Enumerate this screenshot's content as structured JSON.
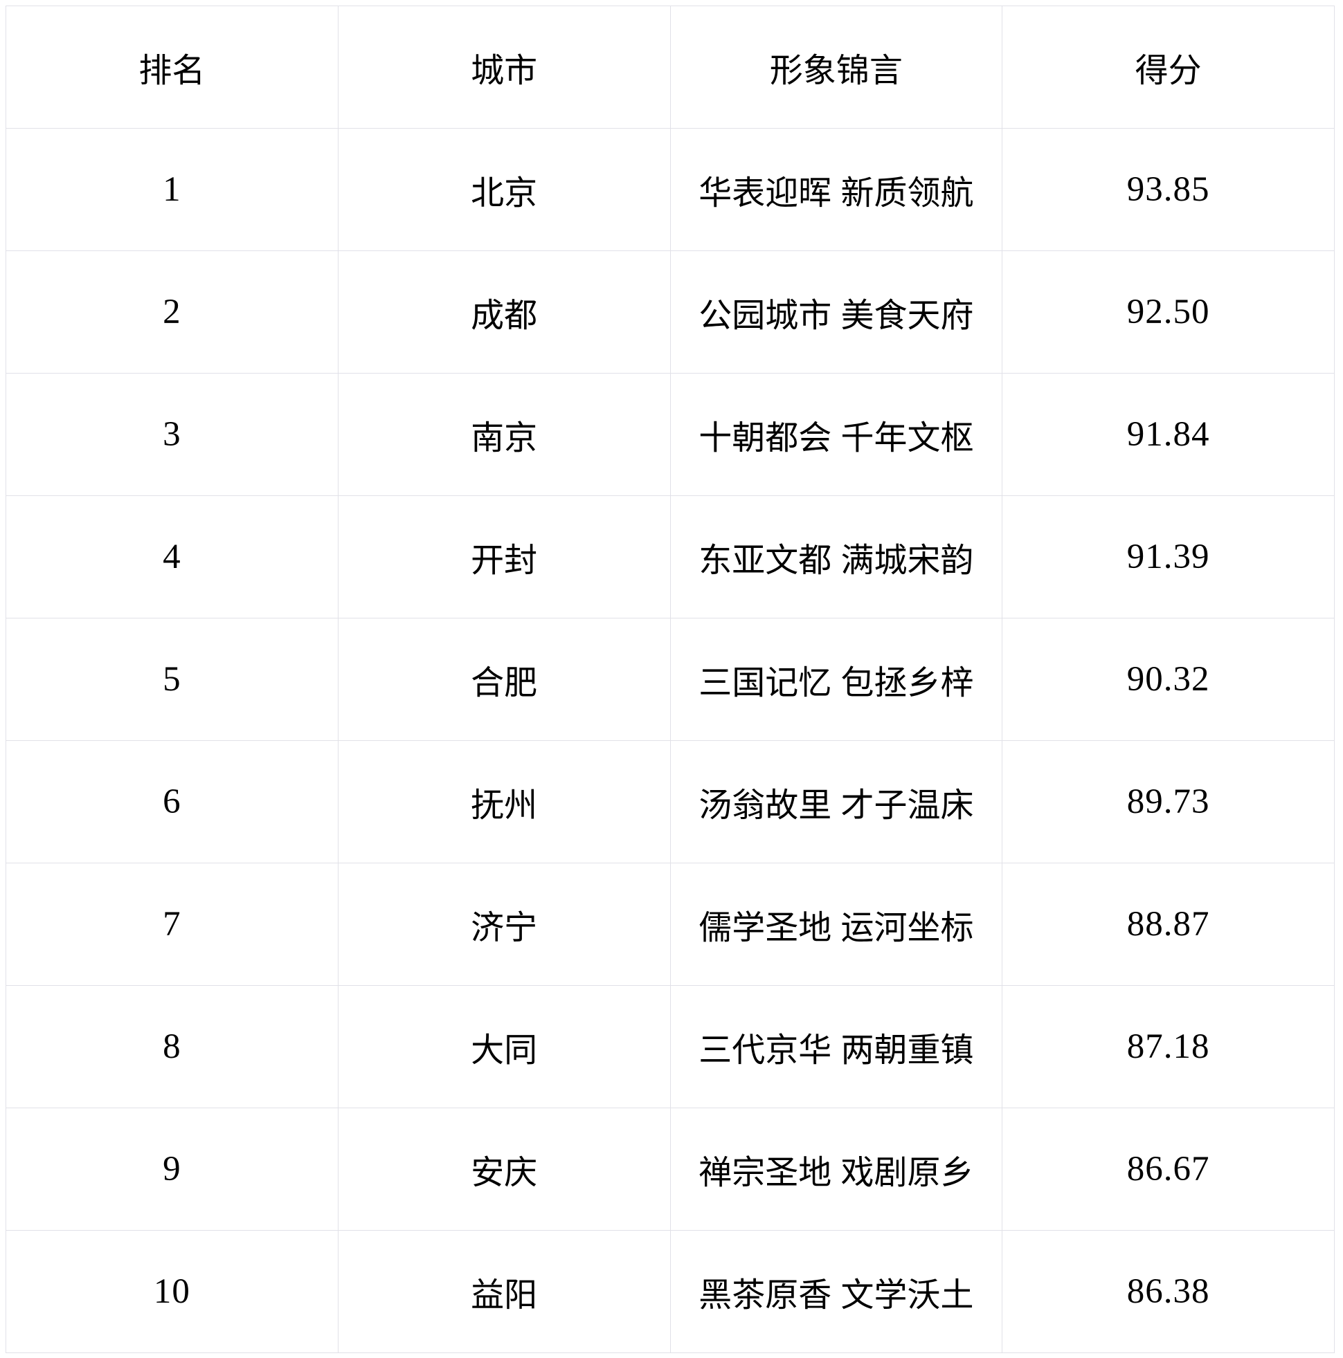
{
  "chart_data": {
    "type": "table",
    "title": "",
    "columns": [
      "排名",
      "城市",
      "形象锦言",
      "得分"
    ],
    "rows": [
      [
        "1",
        "北京",
        "华表迎晖 新质领航",
        "93.85"
      ],
      [
        "2",
        "成都",
        "公园城市 美食天府",
        "92.50"
      ],
      [
        "3",
        "南京",
        "十朝都会 千年文枢",
        "91.84"
      ],
      [
        "4",
        "开封",
        "东亚文都 满城宋韵",
        "91.39"
      ],
      [
        "5",
        "合肥",
        "三国记忆 包拯乡梓",
        "90.32"
      ],
      [
        "6",
        "抚州",
        "汤翁故里 才子温床",
        "89.73"
      ],
      [
        "7",
        "济宁",
        "儒学圣地 运河坐标",
        "88.87"
      ],
      [
        "8",
        "大同",
        "三代京华 两朝重镇",
        "87.18"
      ],
      [
        "9",
        "安庆",
        "禅宗圣地 戏剧原乡",
        "86.67"
      ],
      [
        "10",
        "益阳",
        "黑茶原香 文学沃土",
        "86.38"
      ]
    ],
    "layout": {
      "grid": true,
      "columns_equal_width": true,
      "text_align": "center"
    }
  },
  "colors": {
    "background": "#ffffff",
    "border": "#e1e1e8",
    "text": "#000000"
  }
}
